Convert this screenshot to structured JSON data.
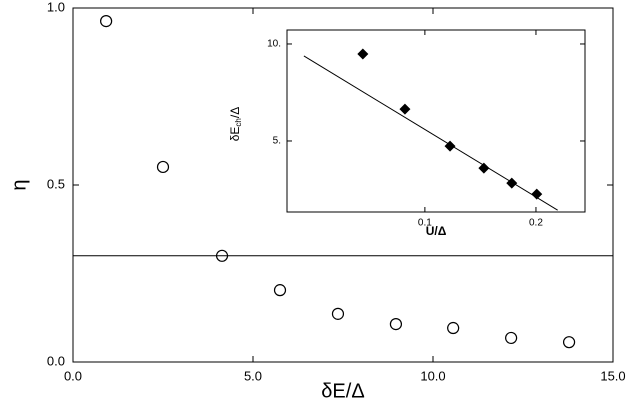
{
  "chart_data": [
    {
      "type": "scatter",
      "xlabel": "δE/Δ",
      "ylabel": "η",
      "x": [
        0.92,
        2.5,
        4.14,
        5.75,
        7.36,
        8.97,
        10.56,
        12.17,
        13.78
      ],
      "values": [
        0.963,
        0.551,
        0.3,
        0.203,
        0.136,
        0.107,
        0.096,
        0.068,
        0.056
      ],
      "hline": 0.3,
      "xlim": [
        0,
        15
      ],
      "ylim": [
        0,
        1
      ],
      "xticks": [
        {
          "value": 0,
          "label": "0.0"
        },
        {
          "value": 5,
          "label": "5.0"
        },
        {
          "value": 10,
          "label": "10.0"
        },
        {
          "value": 15,
          "label": "15.0"
        }
      ],
      "yticks": [
        {
          "value": 0,
          "label": "0.0"
        },
        {
          "value": 0.5,
          "label": "0.5"
        },
        {
          "value": 1,
          "label": "1.0"
        }
      ]
    },
    {
      "type": "scatter",
      "log_x": true,
      "log_y": true,
      "xlabel": "U/Δ",
      "ylabel": "δE",
      "ylabel_sub": "ch",
      "ylabel_end": "/Δ",
      "series": [
        {
          "marker": "diamond",
          "x": [
            0.0679,
            0.0883,
            0.117,
            0.1445,
            0.172,
            0.201
          ],
          "values": [
            9.31,
            6.28,
            4.82,
            4.12,
            3.7,
            3.42
          ]
        },
        {
          "marker": "line",
          "x": [
            0.047,
            0.229
          ],
          "values": [
            9.18,
            3.05
          ]
        }
      ],
      "xlim": [
        0.0423,
        0.2716
      ],
      "ylim": [
        3.01,
        11.05
      ],
      "xticks": [
        0.1,
        0.2
      ],
      "yticks": [
        {
          "value": 5,
          "label": "5."
        },
        {
          "value": 10,
          "label": "10."
        }
      ]
    }
  ]
}
